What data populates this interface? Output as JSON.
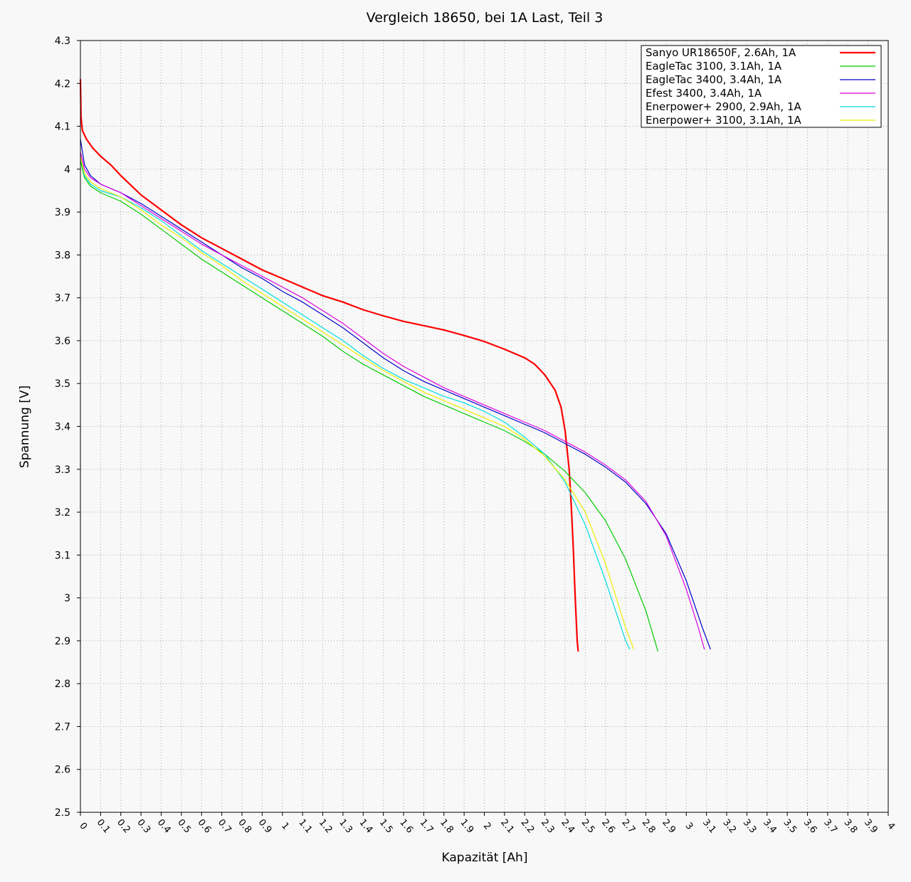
{
  "chart_data": {
    "type": "line",
    "title": "Vergleich 18650, bei 1A Last, Teil 3",
    "xlabel": "Kapazität [Ah]",
    "ylabel": "Spannung [V]",
    "xlim": [
      0,
      4
    ],
    "ylim": [
      2.5,
      4.3
    ],
    "x_ticks": [
      "0",
      "0.1",
      "0.2",
      "0.3",
      "0.4",
      "0.5",
      "0.6",
      "0.7",
      "0.8",
      "0.9",
      "1",
      "1.1",
      "1.2",
      "1.3",
      "1.4",
      "1.5",
      "1.6",
      "1.7",
      "1.8",
      "1.9",
      "2",
      "2.1",
      "2.2",
      "2.3",
      "2.4",
      "2.5",
      "2.6",
      "2.7",
      "2.8",
      "2.9",
      "3",
      "3.1",
      "3.2",
      "3.3",
      "3.4",
      "3.5",
      "3.6",
      "3.7",
      "3.8",
      "3.9",
      "4"
    ],
    "y_ticks": [
      "2.5",
      "2.6",
      "2.7",
      "2.8",
      "2.9",
      "3",
      "3.1",
      "3.2",
      "3.3",
      "3.4",
      "3.5",
      "3.6",
      "3.7",
      "3.8",
      "3.9",
      "4",
      "4.1",
      "4.2",
      "4.3"
    ],
    "grid": true,
    "legend_position": "top-right",
    "series": [
      {
        "name": "Sanyo UR18650F, 2.6Ah, 1A",
        "color": "#ff0000",
        "points": [
          [
            0,
            4.21
          ],
          [
            0.003,
            4.12
          ],
          [
            0.01,
            4.09
          ],
          [
            0.03,
            4.07
          ],
          [
            0.06,
            4.05
          ],
          [
            0.1,
            4.03
          ],
          [
            0.15,
            4.01
          ],
          [
            0.2,
            3.985
          ],
          [
            0.3,
            3.94
          ],
          [
            0.4,
            3.905
          ],
          [
            0.5,
            3.87
          ],
          [
            0.6,
            3.84
          ],
          [
            0.7,
            3.815
          ],
          [
            0.8,
            3.79
          ],
          [
            0.9,
            3.765
          ],
          [
            1.0,
            3.745
          ],
          [
            1.1,
            3.725
          ],
          [
            1.2,
            3.705
          ],
          [
            1.3,
            3.69
          ],
          [
            1.4,
            3.672
          ],
          [
            1.5,
            3.658
          ],
          [
            1.6,
            3.645
          ],
          [
            1.7,
            3.635
          ],
          [
            1.8,
            3.625
          ],
          [
            1.9,
            3.612
          ],
          [
            2.0,
            3.598
          ],
          [
            2.1,
            3.58
          ],
          [
            2.2,
            3.56
          ],
          [
            2.25,
            3.545
          ],
          [
            2.3,
            3.52
          ],
          [
            2.35,
            3.485
          ],
          [
            2.38,
            3.445
          ],
          [
            2.4,
            3.39
          ],
          [
            2.42,
            3.3
          ],
          [
            2.43,
            3.22
          ],
          [
            2.44,
            3.12
          ],
          [
            2.45,
            3.0
          ],
          [
            2.46,
            2.9
          ],
          [
            2.465,
            2.875
          ]
        ]
      },
      {
        "name": "EagleTac 3100, 3.1Ah, 1A",
        "color": "#00cc00",
        "points": [
          [
            0,
            4.02
          ],
          [
            0.02,
            3.98
          ],
          [
            0.05,
            3.96
          ],
          [
            0.1,
            3.945
          ],
          [
            0.2,
            3.925
          ],
          [
            0.3,
            3.895
          ],
          [
            0.4,
            3.86
          ],
          [
            0.5,
            3.825
          ],
          [
            0.6,
            3.79
          ],
          [
            0.7,
            3.76
          ],
          [
            0.8,
            3.73
          ],
          [
            0.9,
            3.7
          ],
          [
            1.0,
            3.67
          ],
          [
            1.1,
            3.64
          ],
          [
            1.2,
            3.61
          ],
          [
            1.3,
            3.575
          ],
          [
            1.4,
            3.545
          ],
          [
            1.5,
            3.52
          ],
          [
            1.6,
            3.495
          ],
          [
            1.7,
            3.47
          ],
          [
            1.8,
            3.45
          ],
          [
            1.9,
            3.43
          ],
          [
            2.0,
            3.41
          ],
          [
            2.1,
            3.39
          ],
          [
            2.2,
            3.365
          ],
          [
            2.3,
            3.335
          ],
          [
            2.4,
            3.295
          ],
          [
            2.5,
            3.245
          ],
          [
            2.6,
            3.18
          ],
          [
            2.7,
            3.09
          ],
          [
            2.8,
            2.97
          ],
          [
            2.86,
            2.875
          ]
        ]
      },
      {
        "name": "EagleTac 3400, 3.4Ah, 1A",
        "color": "#0000cc",
        "points": [
          [
            0,
            4.07
          ],
          [
            0.02,
            4.01
          ],
          [
            0.05,
            3.985
          ],
          [
            0.1,
            3.965
          ],
          [
            0.2,
            3.945
          ],
          [
            0.3,
            3.92
          ],
          [
            0.4,
            3.89
          ],
          [
            0.5,
            3.86
          ],
          [
            0.6,
            3.83
          ],
          [
            0.7,
            3.8
          ],
          [
            0.8,
            3.77
          ],
          [
            0.9,
            3.745
          ],
          [
            1.0,
            3.715
          ],
          [
            1.1,
            3.69
          ],
          [
            1.2,
            3.66
          ],
          [
            1.3,
            3.63
          ],
          [
            1.4,
            3.595
          ],
          [
            1.5,
            3.56
          ],
          [
            1.6,
            3.53
          ],
          [
            1.7,
            3.505
          ],
          [
            1.8,
            3.485
          ],
          [
            1.9,
            3.465
          ],
          [
            2.0,
            3.445
          ],
          [
            2.1,
            3.425
          ],
          [
            2.2,
            3.405
          ],
          [
            2.3,
            3.385
          ],
          [
            2.4,
            3.36
          ],
          [
            2.5,
            3.335
          ],
          [
            2.6,
            3.305
          ],
          [
            2.7,
            3.27
          ],
          [
            2.8,
            3.22
          ],
          [
            2.9,
            3.15
          ],
          [
            3.0,
            3.04
          ],
          [
            3.08,
            2.93
          ],
          [
            3.12,
            2.88
          ]
        ]
      },
      {
        "name": "Efest 3400, 3.4Ah, 1A",
        "color": "#dd00dd",
        "points": [
          [
            0,
            4.04
          ],
          [
            0.02,
            4.0
          ],
          [
            0.05,
            3.98
          ],
          [
            0.1,
            3.965
          ],
          [
            0.2,
            3.945
          ],
          [
            0.3,
            3.915
          ],
          [
            0.4,
            3.885
          ],
          [
            0.5,
            3.855
          ],
          [
            0.6,
            3.825
          ],
          [
            0.7,
            3.8
          ],
          [
            0.8,
            3.775
          ],
          [
            0.9,
            3.75
          ],
          [
            1.0,
            3.725
          ],
          [
            1.1,
            3.7
          ],
          [
            1.2,
            3.67
          ],
          [
            1.3,
            3.64
          ],
          [
            1.4,
            3.605
          ],
          [
            1.5,
            3.57
          ],
          [
            1.6,
            3.54
          ],
          [
            1.7,
            3.515
          ],
          [
            1.8,
            3.49
          ],
          [
            1.9,
            3.47
          ],
          [
            2.0,
            3.45
          ],
          [
            2.1,
            3.43
          ],
          [
            2.2,
            3.41
          ],
          [
            2.3,
            3.39
          ],
          [
            2.4,
            3.365
          ],
          [
            2.5,
            3.34
          ],
          [
            2.6,
            3.31
          ],
          [
            2.7,
            3.275
          ],
          [
            2.8,
            3.225
          ],
          [
            2.9,
            3.145
          ],
          [
            3.0,
            3.02
          ],
          [
            3.06,
            2.93
          ],
          [
            3.09,
            2.88
          ]
        ]
      },
      {
        "name": "Enerpower+ 2900, 2.9Ah, 1A",
        "color": "#00dddd",
        "points": [
          [
            0,
            4.03
          ],
          [
            0.02,
            3.985
          ],
          [
            0.05,
            3.965
          ],
          [
            0.1,
            3.95
          ],
          [
            0.2,
            3.935
          ],
          [
            0.3,
            3.91
          ],
          [
            0.4,
            3.88
          ],
          [
            0.5,
            3.845
          ],
          [
            0.6,
            3.81
          ],
          [
            0.7,
            3.78
          ],
          [
            0.8,
            3.75
          ],
          [
            0.9,
            3.72
          ],
          [
            1.0,
            3.69
          ],
          [
            1.1,
            3.66
          ],
          [
            1.2,
            3.63
          ],
          [
            1.3,
            3.6
          ],
          [
            1.4,
            3.565
          ],
          [
            1.5,
            3.535
          ],
          [
            1.6,
            3.51
          ],
          [
            1.7,
            3.49
          ],
          [
            1.8,
            3.47
          ],
          [
            1.9,
            3.455
          ],
          [
            2.0,
            3.435
          ],
          [
            2.1,
            3.41
          ],
          [
            2.2,
            3.375
          ],
          [
            2.3,
            3.335
          ],
          [
            2.4,
            3.27
          ],
          [
            2.5,
            3.17
          ],
          [
            2.6,
            3.04
          ],
          [
            2.7,
            2.9
          ],
          [
            2.72,
            2.88
          ]
        ]
      },
      {
        "name": "Enerpower+ 3100, 3.1Ah, 1A",
        "color": "#eeee00",
        "points": [
          [
            0,
            4.03
          ],
          [
            0.02,
            3.99
          ],
          [
            0.05,
            3.97
          ],
          [
            0.1,
            3.955
          ],
          [
            0.2,
            3.935
          ],
          [
            0.3,
            3.905
          ],
          [
            0.4,
            3.87
          ],
          [
            0.5,
            3.84
          ],
          [
            0.6,
            3.805
          ],
          [
            0.7,
            3.775
          ],
          [
            0.8,
            3.74
          ],
          [
            0.9,
            3.71
          ],
          [
            1.0,
            3.68
          ],
          [
            1.1,
            3.65
          ],
          [
            1.2,
            3.62
          ],
          [
            1.3,
            3.59
          ],
          [
            1.4,
            3.56
          ],
          [
            1.5,
            3.53
          ],
          [
            1.6,
            3.505
          ],
          [
            1.7,
            3.48
          ],
          [
            1.8,
            3.46
          ],
          [
            1.9,
            3.44
          ],
          [
            2.0,
            3.42
          ],
          [
            2.1,
            3.4
          ],
          [
            2.2,
            3.37
          ],
          [
            2.3,
            3.33
          ],
          [
            2.4,
            3.275
          ],
          [
            2.5,
            3.2
          ],
          [
            2.6,
            3.08
          ],
          [
            2.7,
            2.93
          ],
          [
            2.74,
            2.88
          ]
        ]
      }
    ]
  }
}
